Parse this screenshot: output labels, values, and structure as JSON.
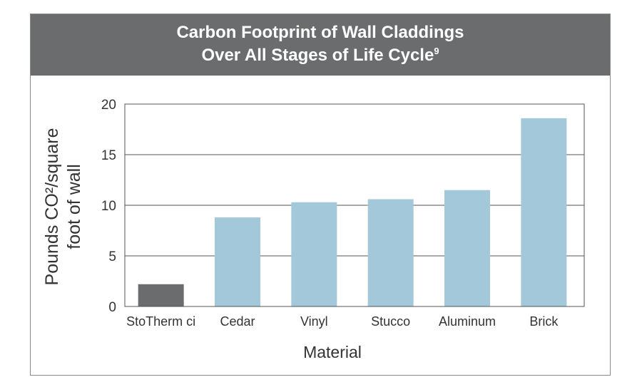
{
  "header": {
    "title_line1": "Carbon Footprint of Wall Claddings",
    "title_line2": "Over All Stages of Life Cycle",
    "title_superscript": "9"
  },
  "chart_data": {
    "type": "bar",
    "title": "Carbon Footprint of Wall Claddings Over All Stages of Life Cycle",
    "categories": [
      "StoTherm ci",
      "Cedar",
      "Vinyl",
      "Stucco",
      "Aluminum",
      "Brick"
    ],
    "values": [
      2.2,
      8.8,
      10.3,
      10.6,
      11.5,
      18.6
    ],
    "bar_colors": [
      "#6b6c6e",
      "#a3c8d9",
      "#a3c8d9",
      "#a3c8d9",
      "#a3c8d9",
      "#a3c8d9"
    ],
    "xlabel": "Material",
    "ylabel_line1": "Pounds CO²/square",
    "ylabel_line2": "foot of wall",
    "ylim": [
      0,
      20
    ],
    "yticks": [
      0,
      5,
      10,
      15,
      20
    ],
    "grid": true,
    "legend": "none"
  },
  "colors": {
    "header_bg": "#6b6c6e",
    "bar_highlight": "#6b6c6e",
    "bar_default": "#a3c8d9",
    "gridline": "#555555"
  }
}
